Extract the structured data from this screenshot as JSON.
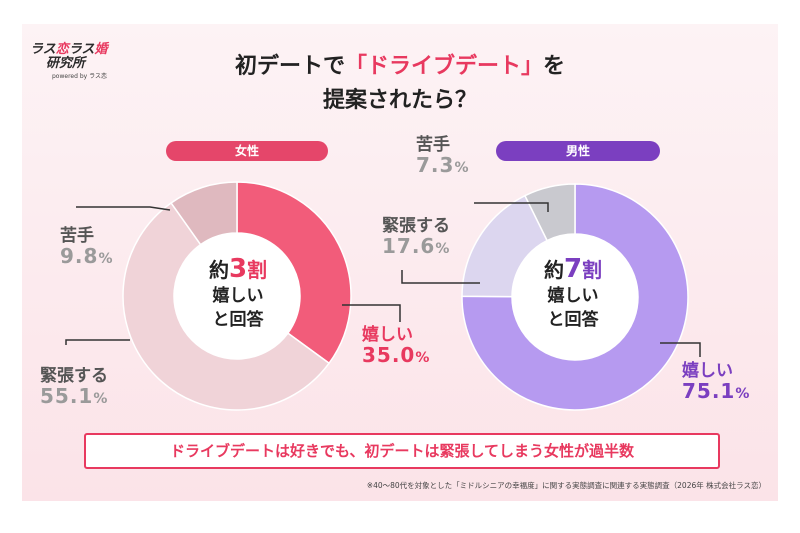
{
  "logo": {
    "line1a": "ラス",
    "line1b": "恋",
    "line1c": "ラス",
    "line1d": "婚",
    "line2": "研究所",
    "line3": "powered by ラス恋"
  },
  "title": {
    "line1_pre": "初デートで",
    "line1_hl": "「ドライブデート」",
    "line1_post": "を",
    "line2": "提案されたら？"
  },
  "female": {
    "pill": "女性",
    "center": {
      "prefix": "約",
      "num": "3",
      "suffix": "割",
      "line2": "嬉しい",
      "line3": "と回答"
    },
    "labels": {
      "happy": "嬉しい",
      "nervous": "緊張する",
      "dislike": "苦手"
    },
    "values_text": {
      "happy": "35.0",
      "nervous": "55.1",
      "dislike": "9.8"
    }
  },
  "male": {
    "pill": "男性",
    "center": {
      "prefix": "約",
      "num": "7",
      "suffix": "割",
      "line2": "嬉しい",
      "line3": "と回答"
    },
    "labels": {
      "happy": "嬉しい",
      "nervous": "緊張する",
      "dislike": "苦手"
    },
    "values_text": {
      "happy": "75.1",
      "nervous": "17.6",
      "dislike": "7.3"
    }
  },
  "percent_sign": "%",
  "banner": "ドライブデートは好きでも、初デートは緊張してしまう女性が過半数",
  "footnote": "※40〜80代を対象とした「ミドルシニアの幸福度」に関する実態調査に関連する実態調査（2026年 株式会社ラス恋）",
  "colors": {
    "pink": "#e8395f",
    "purple": "#7b3fc0"
  },
  "chart_data": [
    {
      "type": "pie",
      "title": "女性",
      "categories": [
        "嬉しい",
        "緊張する",
        "苦手"
      ],
      "values": [
        35.0,
        55.1,
        9.8
      ],
      "colors": [
        "#f25c7a",
        "#f0d3d8",
        "#dfb9bf"
      ]
    },
    {
      "type": "pie",
      "title": "男性",
      "categories": [
        "嬉しい",
        "緊張する",
        "苦手"
      ],
      "values": [
        75.1,
        17.6,
        7.3
      ],
      "colors": [
        "#b69af0",
        "#dcd6ef",
        "#c9c9cf"
      ]
    }
  ]
}
